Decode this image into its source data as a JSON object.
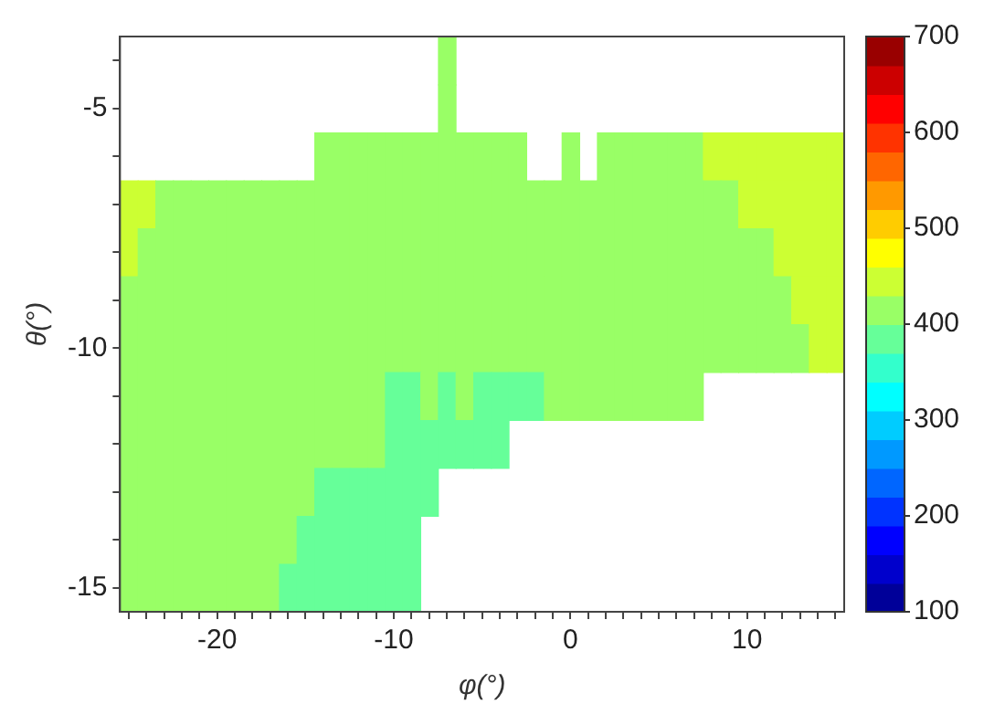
{
  "chart_data": {
    "type": "heatmap",
    "xlabel": "φ(°)",
    "ylabel": "θ(°)",
    "categories": [
      null,
      null,
      null,
      null,
      null,
      "-20",
      null,
      null,
      null,
      null,
      null,
      null,
      null,
      null,
      null,
      "-10",
      null,
      null,
      null,
      null,
      null,
      null,
      null,
      null,
      null,
      "0",
      null,
      null,
      null,
      null,
      null,
      null,
      null,
      null,
      null,
      "10",
      null,
      null,
      null,
      null,
      null
    ],
    "y_categories": [
      null,
      "-5",
      null,
      null,
      null,
      null,
      "-10",
      null,
      null,
      null,
      null,
      "-15"
    ],
    "clim": [
      100,
      700
    ],
    "cticks": [
      100,
      200,
      300,
      400,
      500,
      600,
      700
    ],
    "cells": [
      [
        null,
        null,
        null,
        null,
        null,
        null,
        null,
        null,
        null,
        null,
        null,
        null,
        null,
        null,
        null,
        null,
        null,
        null,
        415,
        null,
        null,
        null,
        null,
        null,
        null,
        null,
        null,
        null,
        null,
        null,
        null,
        null,
        null,
        null,
        null,
        null,
        null,
        null,
        null,
        null,
        null
      ],
      [
        null,
        null,
        null,
        null,
        null,
        null,
        null,
        null,
        null,
        null,
        null,
        null,
        null,
        null,
        null,
        null,
        null,
        null,
        415,
        null,
        null,
        null,
        null,
        null,
        null,
        null,
        null,
        null,
        null,
        null,
        null,
        null,
        null,
        null,
        null,
        null,
        null,
        null,
        null,
        null,
        null
      ],
      [
        null,
        null,
        null,
        null,
        null,
        null,
        null,
        null,
        null,
        null,
        null,
        415,
        415,
        415,
        415,
        415,
        415,
        415,
        415,
        415,
        415,
        415,
        415,
        null,
        null,
        415,
        null,
        415,
        415,
        415,
        415,
        415,
        415,
        445,
        445,
        445,
        445,
        445,
        445,
        445,
        445
      ],
      [
        445,
        445,
        415,
        415,
        415,
        415,
        415,
        415,
        415,
        415,
        415,
        415,
        415,
        415,
        415,
        415,
        415,
        415,
        415,
        415,
        415,
        415,
        415,
        415,
        415,
        415,
        415,
        415,
        415,
        415,
        415,
        415,
        415,
        415,
        415,
        445,
        445,
        445,
        445,
        445,
        445
      ],
      [
        445,
        415,
        415,
        415,
        415,
        415,
        415,
        415,
        415,
        415,
        415,
        415,
        415,
        415,
        415,
        415,
        415,
        415,
        415,
        415,
        415,
        415,
        415,
        415,
        415,
        415,
        415,
        415,
        415,
        415,
        415,
        415,
        415,
        415,
        415,
        415,
        415,
        445,
        445,
        445,
        445
      ],
      [
        415,
        415,
        415,
        415,
        415,
        415,
        415,
        415,
        415,
        415,
        415,
        415,
        415,
        415,
        415,
        415,
        415,
        415,
        415,
        415,
        415,
        415,
        415,
        415,
        415,
        415,
        415,
        415,
        415,
        415,
        415,
        415,
        415,
        415,
        415,
        415,
        415,
        415,
        445,
        445,
        445
      ],
      [
        415,
        415,
        415,
        415,
        415,
        415,
        415,
        415,
        415,
        415,
        415,
        415,
        415,
        415,
        415,
        415,
        415,
        415,
        415,
        415,
        415,
        415,
        415,
        415,
        415,
        415,
        415,
        415,
        415,
        415,
        415,
        415,
        415,
        415,
        415,
        415,
        415,
        415,
        415,
        445,
        445
      ],
      [
        415,
        415,
        415,
        415,
        415,
        415,
        415,
        415,
        415,
        415,
        415,
        415,
        415,
        415,
        415,
        385,
        385,
        415,
        385,
        415,
        385,
        385,
        385,
        385,
        415,
        415,
        415,
        415,
        415,
        415,
        415,
        415,
        415,
        null,
        null,
        null,
        null,
        null,
        null,
        null,
        null
      ],
      [
        415,
        415,
        415,
        415,
        415,
        415,
        415,
        415,
        415,
        415,
        415,
        415,
        415,
        415,
        415,
        385,
        385,
        385,
        385,
        385,
        385,
        385,
        null,
        null,
        null,
        null,
        null,
        null,
        null,
        null,
        null,
        null,
        null,
        null,
        null,
        null,
        null,
        null,
        null,
        null,
        null
      ],
      [
        415,
        415,
        415,
        415,
        415,
        415,
        415,
        415,
        415,
        415,
        415,
        385,
        385,
        385,
        385,
        385,
        385,
        385,
        null,
        null,
        null,
        null,
        null,
        null,
        null,
        null,
        null,
        null,
        null,
        null,
        null,
        null,
        null,
        null,
        null,
        null,
        null,
        null,
        null,
        null,
        null
      ],
      [
        415,
        415,
        415,
        415,
        415,
        415,
        415,
        415,
        415,
        415,
        385,
        385,
        385,
        385,
        385,
        385,
        385,
        null,
        null,
        null,
        null,
        null,
        null,
        null,
        null,
        null,
        null,
        null,
        null,
        null,
        null,
        null,
        null,
        null,
        null,
        null,
        null,
        null,
        null,
        null,
        null
      ],
      [
        415,
        415,
        415,
        415,
        415,
        415,
        415,
        415,
        415,
        385,
        385,
        385,
        385,
        385,
        385,
        385,
        385,
        null,
        null,
        null,
        null,
        null,
        null,
        null,
        null,
        null,
        null,
        null,
        null,
        null,
        null,
        null,
        null,
        null,
        null,
        null,
        null,
        null,
        null,
        null,
        null
      ]
    ]
  }
}
